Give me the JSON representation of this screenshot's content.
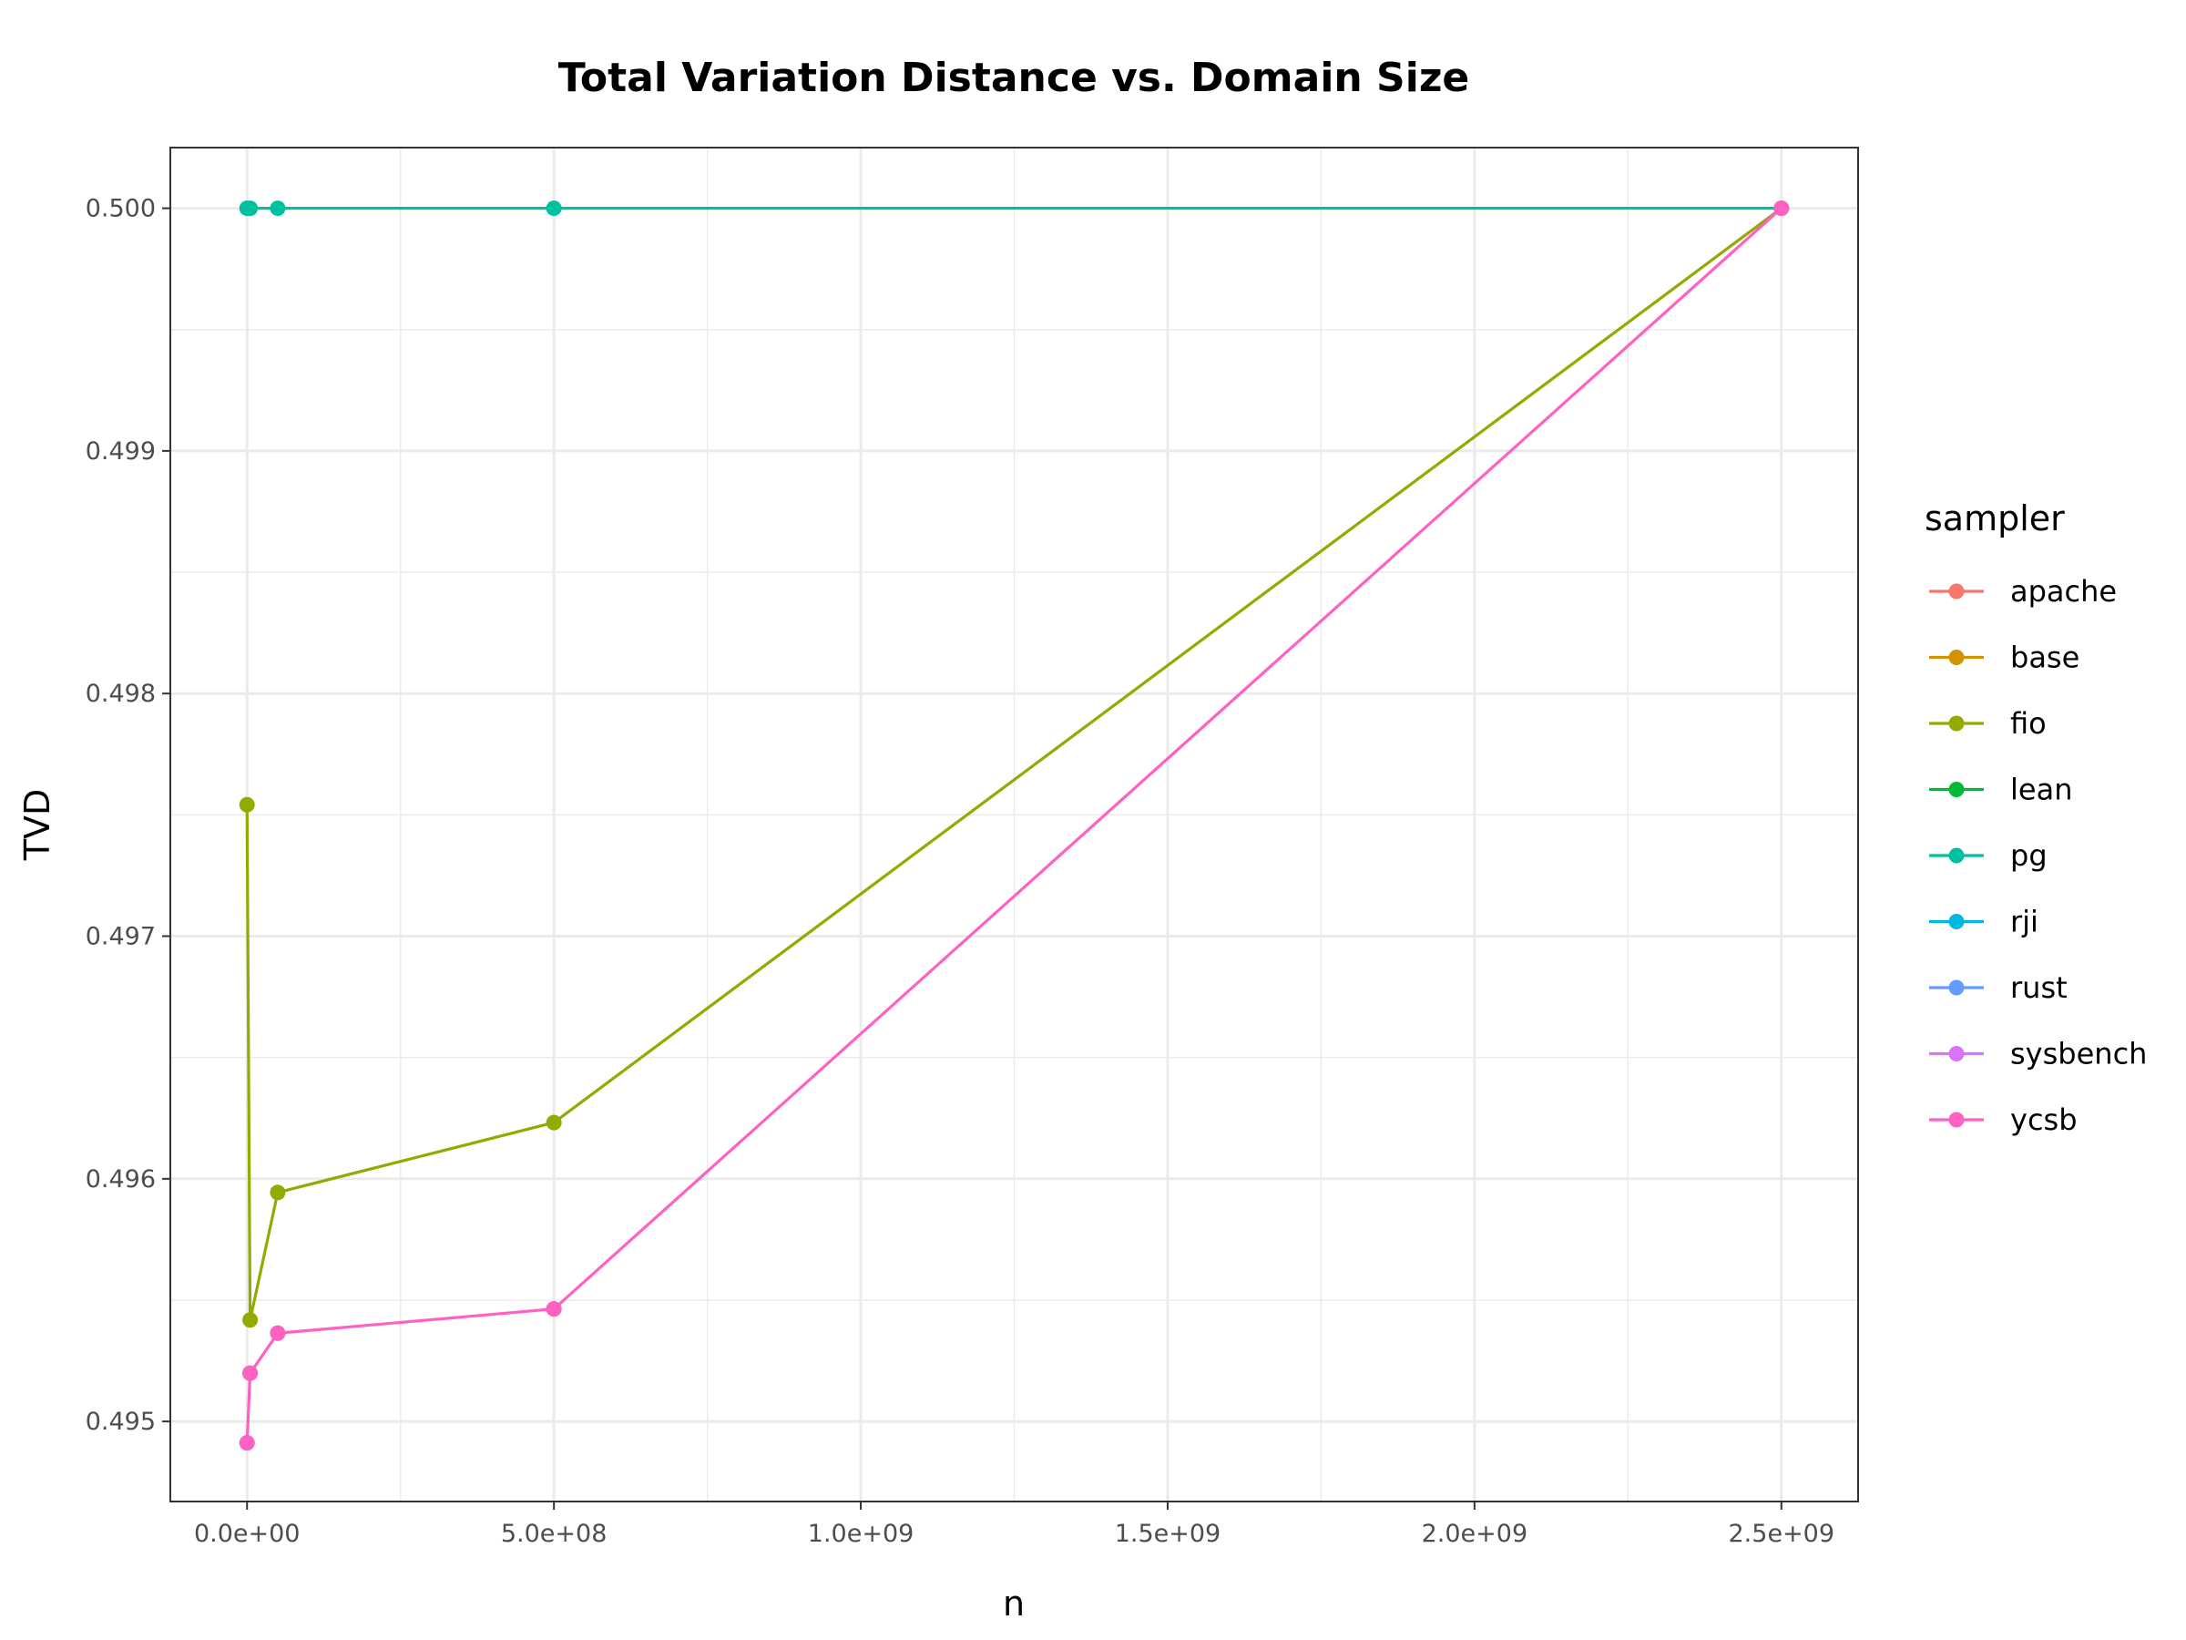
{
  "chart_data": {
    "type": "line",
    "title": "Total Variation Distance vs. Domain Size",
    "xlabel": "n",
    "ylabel": "TVD",
    "xlim": [
      -125000000,
      2625000000
    ],
    "ylim": [
      0.49467,
      0.50025
    ],
    "x_ticks": [
      0,
      500000000,
      1000000000,
      1500000000,
      2000000000,
      2500000000
    ],
    "x_tick_labels": [
      "0.0e+00",
      "5.0e+08",
      "1.0e+09",
      "1.5e+09",
      "2.0e+09",
      "2.5e+09"
    ],
    "y_ticks": [
      0.495,
      0.496,
      0.497,
      0.498,
      0.499,
      0.5
    ],
    "y_tick_labels": [
      "0.495",
      "0.496",
      "0.497",
      "0.498",
      "0.499",
      "0.500"
    ],
    "grid": true,
    "legend_title": "sampler",
    "legend_position": "right",
    "series": [
      {
        "name": "apache",
        "color": "#F8766D",
        "x": [
          500000000
        ],
        "y": [
          0.4954637
        ]
      },
      {
        "name": "base",
        "color": "#D39200",
        "x": [
          50000000
        ],
        "y": [
          0.4953637
        ]
      },
      {
        "name": "fio",
        "color": "#93AA00",
        "x": [
          100,
          5000000,
          50000000,
          500000000,
          2500000000
        ],
        "y": [
          0.4975418,
          0.495418,
          0.4959437,
          0.4962317,
          0.5
        ]
      },
      {
        "name": "lean",
        "color": "#00BA38",
        "x": [
          5000000
        ],
        "y": [
          0.4951988
        ]
      },
      {
        "name": "pg",
        "color": "#00C19F",
        "x": [
          100,
          5000000,
          50000000,
          500000000,
          2500000000
        ],
        "y": [
          0.5,
          0.5,
          0.5,
          0.5,
          0.5
        ]
      },
      {
        "name": "rji",
        "color": "#00B9E3",
        "x": [
          100
        ],
        "y": [
          0.4949117
        ]
      },
      {
        "name": "rust",
        "color": "#619CFF",
        "x": [],
        "y": []
      },
      {
        "name": "sysbench",
        "color": "#DB72FB",
        "x": [],
        "y": []
      },
      {
        "name": "ycsb",
        "color": "#FF61C3",
        "x": [
          100,
          5000000,
          50000000,
          500000000,
          2500000000
        ],
        "y": [
          0.4949117,
          0.4951988,
          0.4953637,
          0.4954637,
          0.5
        ]
      }
    ]
  }
}
